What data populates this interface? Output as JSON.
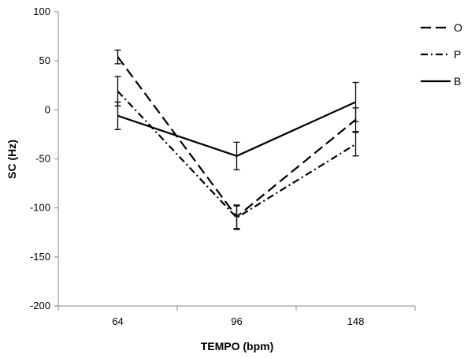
{
  "chart_data": {
    "type": "line",
    "title": "",
    "xlabel": "TEMPO (bpm)",
    "ylabel": "SC (Hz)",
    "categories": [
      "64",
      "96",
      "148"
    ],
    "ylim": [
      -200,
      100
    ],
    "yticks": [
      100,
      50,
      0,
      -50,
      -100,
      -150,
      -200
    ],
    "grid": false,
    "legend_position": "right",
    "series": [
      {
        "name": "O",
        "style": "long-dash",
        "values": [
          54,
          -109,
          -10
        ],
        "error": [
          7,
          12,
          12
        ]
      },
      {
        "name": "P",
        "style": "dash-dot",
        "values": [
          19,
          -110,
          -35
        ],
        "error": [
          15,
          12,
          12
        ]
      },
      {
        "name": "B",
        "style": "solid",
        "values": [
          -6,
          -47,
          8
        ],
        "error": [
          14,
          14,
          20
        ]
      }
    ],
    "colors": {
      "line": "#000000",
      "axis": "#888888"
    }
  }
}
